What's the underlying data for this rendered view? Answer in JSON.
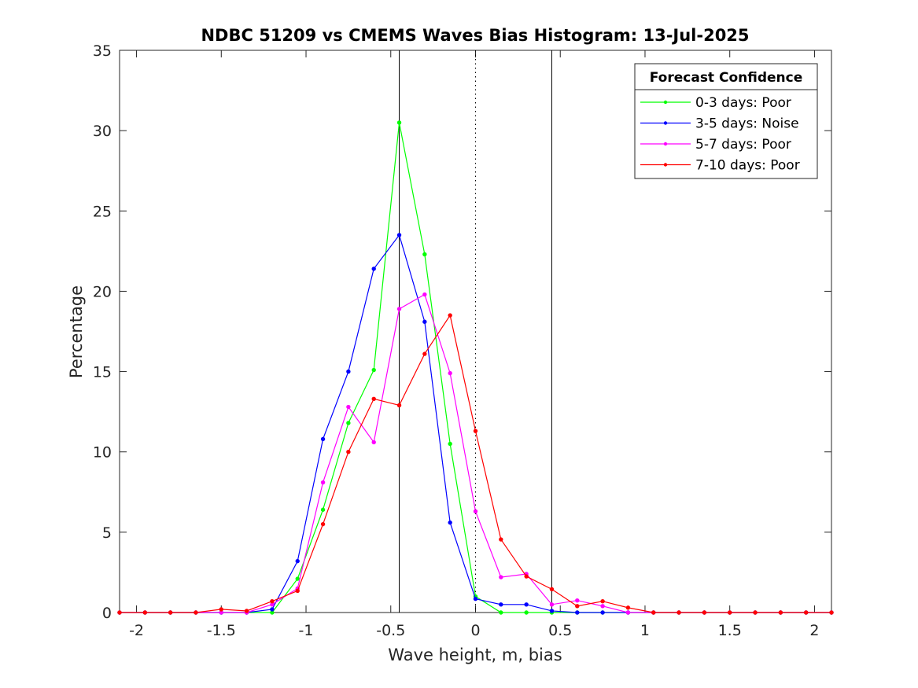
{
  "chart_data": {
    "type": "line",
    "title": "NDBC 51209 vs CMEMS Waves Bias Histogram: 13-Jul-2025",
    "xlabel": "Wave height, m, bias",
    "ylabel": "Percentage",
    "xlim": [
      -2.1,
      2.1
    ],
    "ylim": [
      0,
      35
    ],
    "xticks": [
      -2,
      -1.5,
      -1,
      -0.5,
      0,
      0.5,
      1,
      1.5,
      2
    ],
    "xtick_labels": [
      "-2",
      "-1.5",
      "-1",
      "-0.5",
      "0",
      "0.5",
      "1",
      "1.5",
      "2"
    ],
    "yticks": [
      0,
      5,
      10,
      15,
      20,
      25,
      30,
      35
    ],
    "ytick_labels": [
      "0",
      "5",
      "10",
      "15",
      "20",
      "25",
      "30",
      "35"
    ],
    "grid": false,
    "legend": {
      "title": "Forecast Confidence",
      "location": "top-right"
    },
    "reference_lines": [
      {
        "x": -0.45,
        "style": "solid",
        "color": "#000000"
      },
      {
        "x": 0,
        "style": "dotted",
        "color": "#000000"
      },
      {
        "x": 0.45,
        "style": "solid",
        "color": "#000000"
      }
    ],
    "x": [
      -2.1,
      -1.95,
      -1.8,
      -1.65,
      -1.5,
      -1.35,
      -1.2,
      -1.05,
      -0.9,
      -0.75,
      -0.6,
      -0.45,
      -0.3,
      -0.15,
      0,
      0.15,
      0.3,
      0.45,
      0.6,
      0.75,
      0.9,
      1.05,
      1.2,
      1.35,
      1.5,
      1.65,
      1.8,
      1.95,
      2.1
    ],
    "series": [
      {
        "name": "0-3 days: Poor",
        "color": "#00ff00",
        "values": [
          0,
          0,
          0,
          0,
          0,
          0,
          0,
          2.1,
          6.4,
          11.8,
          15.1,
          30.5,
          22.3,
          10.5,
          1.0,
          0,
          0,
          0,
          0,
          0,
          0,
          0,
          0,
          0,
          0,
          0,
          0,
          0,
          0
        ]
      },
      {
        "name": "3-5 days: Noise",
        "color": "#0000ff",
        "values": [
          0,
          0,
          0,
          0,
          0,
          0,
          0.2,
          3.2,
          10.8,
          15.0,
          21.4,
          23.5,
          18.1,
          5.6,
          0.85,
          0.5,
          0.5,
          0.1,
          0,
          0,
          0,
          0,
          0,
          0,
          0,
          0,
          0,
          0,
          0
        ]
      },
      {
        "name": "5-7 days: Poor",
        "color": "#ff00ff",
        "values": [
          0,
          0,
          0,
          0,
          0,
          0,
          0.5,
          1.5,
          8.1,
          12.8,
          10.6,
          18.9,
          19.8,
          14.9,
          6.3,
          2.2,
          2.4,
          0.5,
          0.75,
          0.4,
          0,
          0,
          0,
          0,
          0,
          0,
          0,
          0,
          0
        ]
      },
      {
        "name": "7-10 days: Poor",
        "color": "#ff0000",
        "values": [
          0,
          0,
          0,
          0,
          0.2,
          0.1,
          0.7,
          1.35,
          5.5,
          10.0,
          13.3,
          12.9,
          16.1,
          18.5,
          11.3,
          4.55,
          2.25,
          1.45,
          0.4,
          0.7,
          0.3,
          0,
          0,
          0,
          0,
          0,
          0,
          0,
          0
        ]
      }
    ]
  }
}
